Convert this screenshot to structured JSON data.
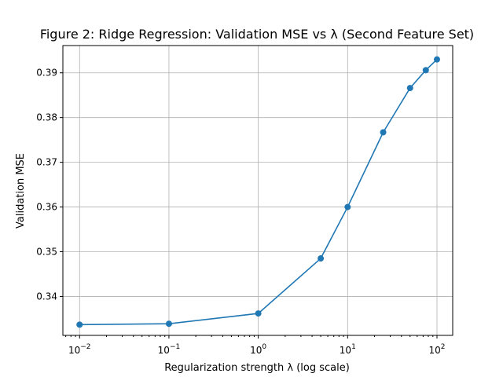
{
  "chart_data": {
    "type": "line",
    "title": "Figure 2: Ridge Regression: Validation MSE vs λ (Second Feature Set)",
    "xlabel": "Regularization strength λ (log scale)",
    "ylabel": "Validation MSE",
    "xscale": "log",
    "xlim": [
      0.0065,
      150
    ],
    "ylim": [
      0.3313,
      0.3961
    ],
    "grid": true,
    "x_ticks": [
      {
        "value": 0.01,
        "base": "10",
        "exp": "−2"
      },
      {
        "value": 0.1,
        "base": "10",
        "exp": "−1"
      },
      {
        "value": 1,
        "base": "10",
        "exp": "0"
      },
      {
        "value": 10,
        "base": "10",
        "exp": "1"
      },
      {
        "value": 100,
        "base": "10",
        "exp": "2"
      }
    ],
    "y_ticks": [
      "0.34",
      "0.35",
      "0.36",
      "0.37",
      "0.38",
      "0.39"
    ],
    "color": "#1f77b4",
    "series": [
      {
        "x": [
          0.01,
          0.1,
          1,
          5,
          10,
          25,
          50,
          75,
          100
        ],
        "y": [
          0.3337,
          0.3339,
          0.3362,
          0.3485,
          0.36,
          0.3767,
          0.3866,
          0.3906,
          0.393
        ]
      }
    ]
  }
}
